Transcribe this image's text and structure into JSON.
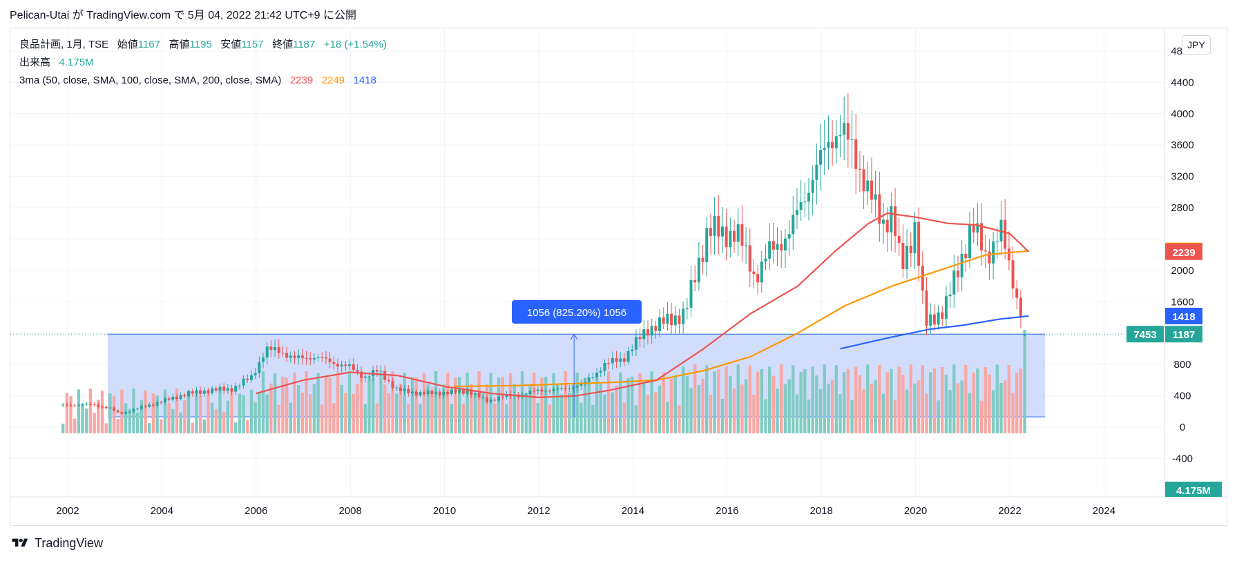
{
  "header": {
    "publish_line": "Pelican-Utai が TradingView.com で 5月 04, 2022 21:42 UTC+9 に公開"
  },
  "legend": {
    "symbol": "良品計画, 1月, TSE",
    "open_label": "始値",
    "open_value": "1167",
    "high_label": "高値",
    "high_value": "1195",
    "low_label": "安値",
    "low_value": "1157",
    "close_label": "終値",
    "close_value": "1187",
    "change": "+18 (+1.54%)",
    "volume_label": "出来高",
    "volume_value": "4.175M",
    "ma_label": "3ma (50, close, SMA, 100, close, SMA, 200, close, SMA)",
    "ma50_value": "2239",
    "ma100_value": "2249",
    "ma200_value": "1418"
  },
  "currency_button": "JPY",
  "footer": {
    "brand": "TradingView"
  },
  "colors": {
    "up": "#26a69a",
    "down": "#ef5350",
    "ma50": "#ef5350",
    "ma100": "#ff9800",
    "ma200": "#2962ff",
    "measure_fill": "#c7d4fb",
    "measure_line": "#2962ff",
    "vol_up": "#80cbc4",
    "vol_down": "#f7a8a5"
  },
  "chart_data": {
    "type": "candlestick",
    "interval": "1 month",
    "price_axis": {
      "ticks": [
        -400,
        0,
        400,
        800,
        1200,
        1600,
        2000,
        2400,
        2800,
        3200,
        3600,
        4000,
        4400,
        4800
      ],
      "tick_labels": [
        "-400",
        "0",
        "400",
        "800",
        "",
        "1600",
        "2000",
        "",
        "2800",
        "3200",
        "3600",
        "4000",
        "4400",
        "4800"
      ],
      "labels": [
        {
          "text": "2249",
          "value": 2249,
          "color": "#ff9800"
        },
        {
          "text": "2239",
          "value": 2239,
          "color": "#ef5350"
        },
        {
          "text": "1418",
          "value": 1418,
          "color": "#2962ff"
        },
        {
          "text": "1187",
          "value": 1187,
          "color": "#26a69a"
        }
      ],
      "volume_label": "4.175M",
      "countdown": "7453"
    },
    "x_axis": {
      "ticks": [
        2002,
        2004,
        2006,
        2008,
        2010,
        2012,
        2014,
        2016,
        2018,
        2020,
        2022,
        2024
      ],
      "tick_labels": [
        "2002",
        "2004",
        "2006",
        "2008",
        "2010",
        "2012",
        "2014",
        "2016",
        "2018",
        "2020",
        "2022",
        "2024"
      ]
    },
    "close_path": [
      [
        2001.9,
        280
      ],
      [
        2002.5,
        290
      ],
      [
        2002.9,
        240
      ],
      [
        2003.1,
        170
      ],
      [
        2003.5,
        240
      ],
      [
        2004.0,
        330
      ],
      [
        2004.5,
        420
      ],
      [
        2005.0,
        470
      ],
      [
        2005.5,
        490
      ],
      [
        2005.9,
        640
      ],
      [
        2006.2,
        980
      ],
      [
        2006.5,
        980
      ],
      [
        2006.8,
        870
      ],
      [
        2007.2,
        900
      ],
      [
        2007.6,
        830
      ],
      [
        2008.0,
        760
      ],
      [
        2008.3,
        640
      ],
      [
        2008.6,
        720
      ],
      [
        2009.0,
        470
      ],
      [
        2009.5,
        430
      ],
      [
        2010.0,
        440
      ],
      [
        2010.5,
        460
      ],
      [
        2010.9,
        330
      ],
      [
        2011.2,
        390
      ],
      [
        2011.6,
        410
      ],
      [
        2012.0,
        470
      ],
      [
        2012.5,
        480
      ],
      [
        2013.0,
        570
      ],
      [
        2013.4,
        800
      ],
      [
        2013.8,
        880
      ],
      [
        2014.3,
        1250
      ],
      [
        2014.7,
        1350
      ],
      [
        2015.1,
        1450
      ],
      [
        2015.4,
        2100
      ],
      [
        2015.6,
        2550
      ],
      [
        2015.9,
        2450
      ],
      [
        2016.2,
        2500
      ],
      [
        2016.6,
        1900
      ],
      [
        2016.9,
        2250
      ],
      [
        2017.3,
        2450
      ],
      [
        2017.6,
        2900
      ],
      [
        2017.9,
        3300
      ],
      [
        2018.2,
        3700
      ],
      [
        2018.4,
        3800
      ],
      [
        2018.7,
        3500
      ],
      [
        2019.0,
        3000
      ],
      [
        2019.3,
        2600
      ],
      [
        2019.5,
        2750
      ],
      [
        2019.7,
        2000
      ],
      [
        2020.0,
        2600
      ],
      [
        2020.2,
        1300
      ],
      [
        2020.6,
        1500
      ],
      [
        2020.9,
        2000
      ],
      [
        2021.2,
        2600
      ],
      [
        2021.5,
        2150
      ],
      [
        2021.8,
        2550
      ],
      [
        2022.0,
        2000
      ],
      [
        2022.2,
        1550
      ],
      [
        2022.35,
        1187
      ]
    ],
    "ma50": [
      [
        2006.0,
        430
      ],
      [
        2007.0,
        600
      ],
      [
        2008.0,
        700
      ],
      [
        2009.0,
        660
      ],
      [
        2010.0,
        520
      ],
      [
        2011.0,
        430
      ],
      [
        2012.0,
        380
      ],
      [
        2012.8,
        400
      ],
      [
        2013.5,
        470
      ],
      [
        2014.5,
        600
      ],
      [
        2015.5,
        1000
      ],
      [
        2016.5,
        1450
      ],
      [
        2017.5,
        1800
      ],
      [
        2018.3,
        2250
      ],
      [
        2019.0,
        2600
      ],
      [
        2019.4,
        2730
      ],
      [
        2020.0,
        2680
      ],
      [
        2020.7,
        2600
      ],
      [
        2021.3,
        2580
      ],
      [
        2022.0,
        2470
      ],
      [
        2022.4,
        2239
      ]
    ],
    "ma100": [
      [
        2010.2,
        520
      ],
      [
        2011.5,
        530
      ],
      [
        2012.5,
        550
      ],
      [
        2013.5,
        570
      ],
      [
        2014.5,
        600
      ],
      [
        2015.5,
        720
      ],
      [
        2016.5,
        900
      ],
      [
        2017.5,
        1200
      ],
      [
        2018.5,
        1550
      ],
      [
        2019.5,
        1800
      ],
      [
        2020.5,
        2000
      ],
      [
        2021.5,
        2200
      ],
      [
        2022.4,
        2249
      ]
    ],
    "ma200": [
      [
        2018.4,
        1000
      ],
      [
        2019.5,
        1150
      ],
      [
        2020.3,
        1250
      ],
      [
        2021.0,
        1300
      ],
      [
        2021.8,
        1380
      ],
      [
        2022.4,
        1418
      ]
    ],
    "measure": {
      "label": "1056 (825.20%) 1056",
      "from_date": 2002.85,
      "to_date": 2022.75,
      "low": 131,
      "high": 1187
    }
  }
}
